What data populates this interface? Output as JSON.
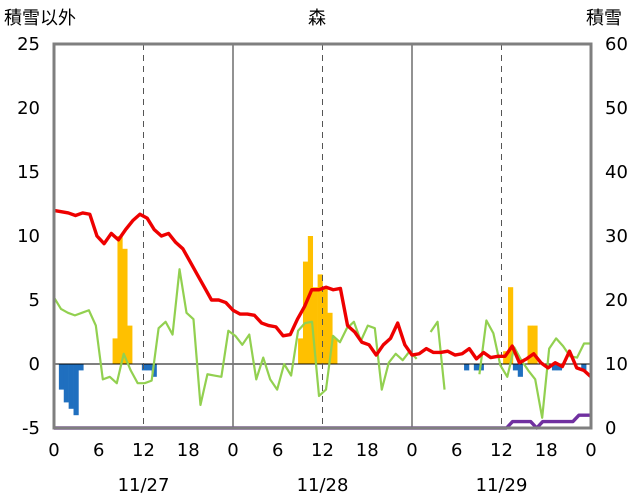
{
  "titles": {
    "left_axis": "積雪以外",
    "station": "森",
    "right_axis": "積雪"
  },
  "colors": {
    "positive_bar": "#ffc000",
    "negative_bar": "#1f6fbf",
    "red_line": "#ee0000",
    "green_line": "#92d050",
    "purple_line": "#7030a0",
    "frame": "#7f7f7f"
  },
  "chart_data": {
    "type": "bar",
    "x_tick_labels": [
      "0",
      "6",
      "12",
      "18",
      "0",
      "6",
      "12",
      "18",
      "0",
      "6",
      "12",
      "18",
      "0"
    ],
    "day_labels": [
      "11/27",
      "11/28",
      "11/29"
    ],
    "ylim_left": [
      -5,
      25
    ],
    "yticks_left": [
      "-5",
      "0",
      "5",
      "10",
      "15",
      "20",
      "25"
    ],
    "ylim_right": [
      0,
      60
    ],
    "yticks_right": [
      "0",
      "10",
      "20",
      "30",
      "40",
      "50",
      "60"
    ],
    "hours": 72,
    "bars": [
      null,
      -2,
      -3,
      -3.5,
      -4,
      -0.5,
      null,
      null,
      null,
      null,
      null,
      null,
      2,
      10,
      9,
      3,
      null,
      null,
      -0.5,
      -0.5,
      -1,
      null,
      null,
      null,
      null,
      null,
      null,
      null,
      null,
      null,
      null,
      null,
      null,
      null,
      null,
      null,
      null,
      null,
      null,
      null,
      null,
      null,
      null,
      null,
      null,
      null,
      null,
      null,
      null,
      null,
      2,
      8,
      10,
      6,
      7,
      6,
      4,
      2,
      null,
      null,
      null,
      null,
      null,
      null,
      null,
      null,
      null,
      null,
      null,
      null,
      null,
      null,
      null,
      null,
      null,
      null,
      null,
      null,
      null,
      null,
      null,
      null,
      null,
      null,
      -0.5,
      null,
      -0.5,
      -0.5,
      null,
      null,
      null,
      null,
      1,
      6,
      -0.5,
      -1,
      null,
      3,
      3,
      null,
      null,
      null,
      -0.5,
      -0.5,
      null,
      null,
      null,
      null,
      -0.5,
      null
    ],
    "red_line": [
      12,
      11.9,
      11.8,
      11.6,
      11.8,
      11.7,
      10,
      9.4,
      10.2,
      9.7,
      10.5,
      11.2,
      11.7,
      11.4,
      10.5,
      10,
      10.2,
      9.5,
      9,
      8,
      7,
      6,
      5,
      5,
      4.8,
      4.2,
      3.9,
      3.9,
      3.8,
      3.2,
      3,
      2.9,
      2.2,
      2.3,
      3.5,
      4.5,
      5.8,
      5.8,
      6,
      5.8,
      5.9,
      3,
      2.5,
      1.7,
      1.5,
      0.7,
      1.5,
      2,
      3.2,
      1.5,
      0.7,
      0.8,
      1.2,
      0.9,
      0.9,
      1,
      0.7,
      0.8,
      1.2,
      0.4,
      0.9,
      0.5,
      0.6,
      0.6,
      1.4,
      0.1,
      0.4,
      0.8,
      0.1,
      -0.3,
      0.1,
      -0.2,
      1,
      -0.3,
      -0.5,
      -1
    ],
    "green_line": [
      5.2,
      4.3,
      4,
      3.8,
      4,
      4.2,
      3,
      -1.2,
      -1,
      -1.5,
      0.8,
      -0.5,
      -1.5,
      -1.5,
      -1.3,
      2.8,
      3.3,
      2.3,
      7.4,
      4,
      3.5,
      -3.2,
      -0.8,
      -0.9,
      -1,
      2.6,
      2.2,
      1.5,
      2.3,
      -1.2,
      0.5,
      -1.2,
      -2,
      0,
      -0.9,
      2.6,
      3.2,
      3.3,
      -2.5,
      -2,
      2.2,
      1.7,
      2.8,
      3.3,
      1.8,
      3,
      2.8,
      -2,
      0.1,
      0.8,
      0.3,
      1,
      0.4,
      null,
      2.5,
      3.3,
      -2,
      null,
      null,
      null,
      null,
      -0.8,
      3.4,
      2.4,
      -0.1,
      -1,
      1.3,
      0.3,
      -0.5,
      -1.2,
      -4.2,
      1.2,
      2,
      1.4,
      0.6,
      0.5,
      1.6,
      1.6
    ],
    "purple_line": [
      0,
      0,
      0,
      0,
      0,
      0,
      0,
      0,
      0,
      0,
      0,
      0,
      0,
      0,
      0,
      0,
      0,
      0,
      0,
      0,
      0,
      0,
      0,
      0,
      0,
      0,
      0,
      0,
      0,
      0,
      0,
      0,
      0,
      0,
      0,
      0,
      0,
      0,
      0,
      0,
      0,
      0,
      0,
      0,
      0,
      0,
      0,
      0,
      0,
      0,
      0,
      0,
      0,
      0,
      0,
      0,
      0,
      0,
      0,
      0,
      0,
      0,
      0,
      0,
      0,
      0,
      0,
      0,
      0,
      0,
      0,
      0,
      0,
      0,
      0,
      0,
      1,
      1,
      1,
      1,
      0,
      1,
      1,
      1,
      1,
      1,
      1,
      2,
      2,
      2
    ],
    "grid": "vertical-dashed-every-12h"
  }
}
